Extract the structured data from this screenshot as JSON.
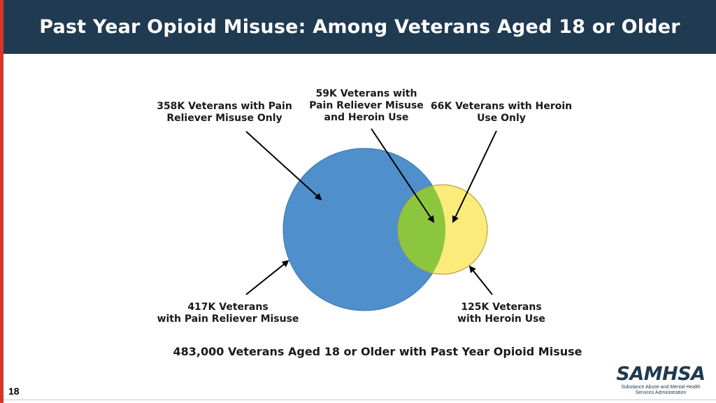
{
  "header": {
    "title": "Past Year Opioid Misuse: Among Veterans Aged 18 or Older"
  },
  "diagram": {
    "label_pain_only": "358K Veterans with Pain\nReliever Misuse Only",
    "label_both": "59K Veterans with\nPain Reliever Misuse\nand Heroin Use",
    "label_heroin_only": "66K Veterans with Heroin\nUse Only",
    "label_pain_total": "417K Veterans\nwith Pain Reliever Misuse",
    "label_heroin_total": "125K Veterans\nwith Heroin Use",
    "total": "483,000 Veterans Aged 18 or Older with Past Year Opioid Misuse",
    "colors": {
      "pain_circle": "#4f8fcb",
      "heroin_circle": "#fbeb7a",
      "overlap": "#8cc63f",
      "arrow": "#000000"
    }
  },
  "footer": {
    "page_number": "18",
    "logo_text": "SAMHSA",
    "logo_subtext": "Substance Abuse and Mental Health\nServices Administration"
  }
}
